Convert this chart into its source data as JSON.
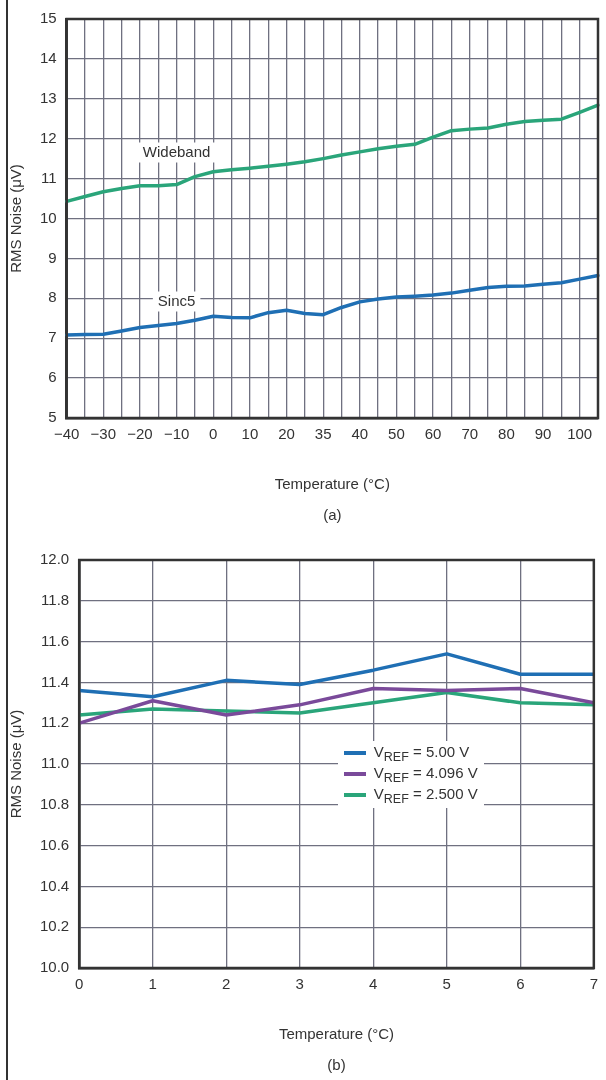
{
  "chart_data": [
    {
      "type": "line",
      "xlabel": "Temperature (°C)",
      "ylabel": "RMS Noise (μV)",
      "annotations": [
        "(a)"
      ],
      "categories": [
        "−40",
        null,
        "−30",
        null,
        "−20",
        null,
        "−10",
        null,
        "0",
        null,
        "10",
        null,
        "20",
        null,
        "35",
        null,
        "40",
        null,
        "50",
        null,
        "60",
        null,
        "70",
        null,
        "80",
        null,
        "90",
        null,
        "100",
        null
      ],
      "series": [
        {
          "name": "Wideband",
          "color": "#2aa57a",
          "values": [
            10.43,
            10.55,
            10.67,
            10.75,
            10.82,
            10.82,
            10.85,
            11.05,
            11.17,
            11.22,
            11.26,
            11.31,
            11.36,
            11.42,
            11.5,
            11.59,
            11.67,
            11.75,
            11.81,
            11.86,
            12.04,
            12.2,
            12.24,
            12.27,
            12.36,
            12.43,
            12.46,
            12.49,
            12.66,
            12.84
          ]
        },
        {
          "name": "Sinc5",
          "color": "#1f6fb4",
          "values": [
            7.08,
            7.09,
            7.1,
            7.18,
            7.27,
            7.32,
            7.37,
            7.45,
            7.55,
            7.52,
            7.51,
            7.64,
            7.7,
            7.62,
            7.59,
            7.77,
            7.91,
            7.98,
            8.03,
            8.05,
            8.08,
            8.13,
            8.2,
            8.27,
            8.3,
            8.31,
            8.35,
            8.39,
            8.48,
            8.57
          ]
        }
      ],
      "ylim": [
        5,
        15
      ],
      "yticks": [
        5,
        6,
        7,
        8,
        9,
        10,
        11,
        12,
        13,
        14,
        15
      ],
      "grid": true,
      "legend": false
    },
    {
      "type": "line",
      "xlabel": "Temperature (°C)",
      "ylabel": "RMS Noise (μV)",
      "annotations": [
        "(b)"
      ],
      "x": [
        0,
        1,
        2,
        3,
        4,
        5,
        6,
        7
      ],
      "series": [
        {
          "name": "V$_{REF}$ = 5.00 V",
          "color": "#1f6fb4",
          "values": [
            11.36,
            11.33,
            11.41,
            11.39,
            11.46,
            11.54,
            11.44,
            11.44
          ]
        },
        {
          "name": "V$_{REF}$ = 4.096 V",
          "color": "#7a4a9a",
          "values": [
            11.2,
            11.31,
            11.24,
            11.29,
            11.37,
            11.36,
            11.37,
            11.3
          ]
        },
        {
          "name": "V$_{REF}$ = 2.500 V",
          "color": "#2aa57a",
          "values": [
            11.24,
            11.27,
            11.26,
            11.25,
            11.3,
            11.35,
            11.3,
            11.29
          ]
        }
      ],
      "xlim": [
        0,
        7
      ],
      "xticks": [
        0,
        1,
        2,
        3,
        4,
        5,
        6,
        7
      ],
      "ylim": [
        10,
        12
      ],
      "yticks": [
        {
          "value": 10,
          "label": "10.0"
        },
        {
          "value": 10.2,
          "label": "10.2"
        },
        {
          "value": 10.4,
          "label": "10.4"
        },
        {
          "value": 10.6,
          "label": "10.6"
        },
        {
          "value": 10.8,
          "label": "10.8"
        },
        {
          "value": 11,
          "label": "11.0"
        },
        {
          "value": 11.2,
          "label": "11.2"
        },
        {
          "value": 11.4,
          "label": "11.4"
        },
        {
          "value": 11.6,
          "label": "11.6"
        },
        {
          "value": 11.8,
          "label": "11.8"
        },
        {
          "value": 12,
          "label": "12.0"
        }
      ],
      "grid": true,
      "legend": "right"
    }
  ]
}
